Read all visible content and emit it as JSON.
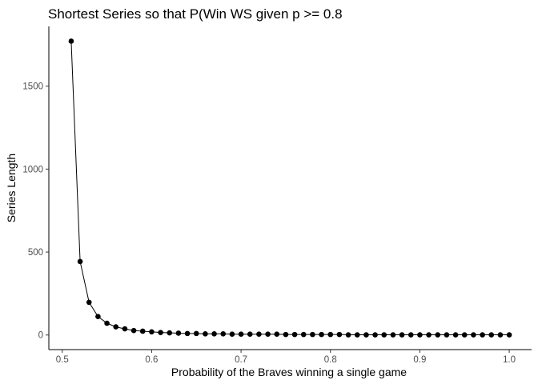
{
  "chart_data": {
    "type": "line",
    "title": "Shortest Series so that P(Win WS given p >= 0.8",
    "xlabel": "Probability of the Braves winning a single game",
    "ylabel": "Series Length",
    "xlim": [
      0.485,
      1.025
    ],
    "ylim": [
      -88,
      1860
    ],
    "x_ticks": [
      0.5,
      0.6,
      0.7,
      0.8,
      0.9,
      1.0
    ],
    "x_tick_labels": [
      "0.5",
      "0.6",
      "0.7",
      "0.8",
      "0.9",
      "1.0"
    ],
    "y_ticks": [
      0,
      500,
      1000,
      1500
    ],
    "y_tick_labels": [
      "0",
      "500",
      "1000",
      "1500"
    ],
    "grid": false,
    "legend": "none",
    "markers": true,
    "color": "#000000",
    "series": [
      {
        "x": [
          0.51,
          0.52,
          0.53,
          0.54,
          0.55,
          0.56,
          0.57,
          0.58,
          0.59,
          0.6,
          0.61,
          0.62,
          0.63,
          0.64,
          0.65,
          0.66,
          0.67,
          0.68,
          0.69,
          0.7,
          0.71,
          0.72,
          0.73,
          0.74,
          0.75,
          0.76,
          0.77,
          0.78,
          0.79,
          0.8,
          0.81,
          0.82,
          0.83,
          0.84,
          0.85,
          0.86,
          0.87,
          0.88,
          0.89,
          0.9,
          0.91,
          0.92,
          0.93,
          0.94,
          0.95,
          0.96,
          0.97,
          0.98,
          0.99,
          1.0
        ],
        "values": [
          1771,
          443,
          197,
          111,
          71,
          49,
          37,
          27,
          23,
          19,
          15,
          13,
          11,
          9,
          9,
          7,
          7,
          7,
          5,
          5,
          5,
          5,
          5,
          5,
          3,
          3,
          3,
          3,
          3,
          3,
          3,
          1,
          1,
          1,
          1,
          1,
          1,
          1,
          1,
          1,
          1,
          1,
          1,
          1,
          1,
          1,
          1,
          1,
          1,
          1
        ]
      }
    ]
  }
}
